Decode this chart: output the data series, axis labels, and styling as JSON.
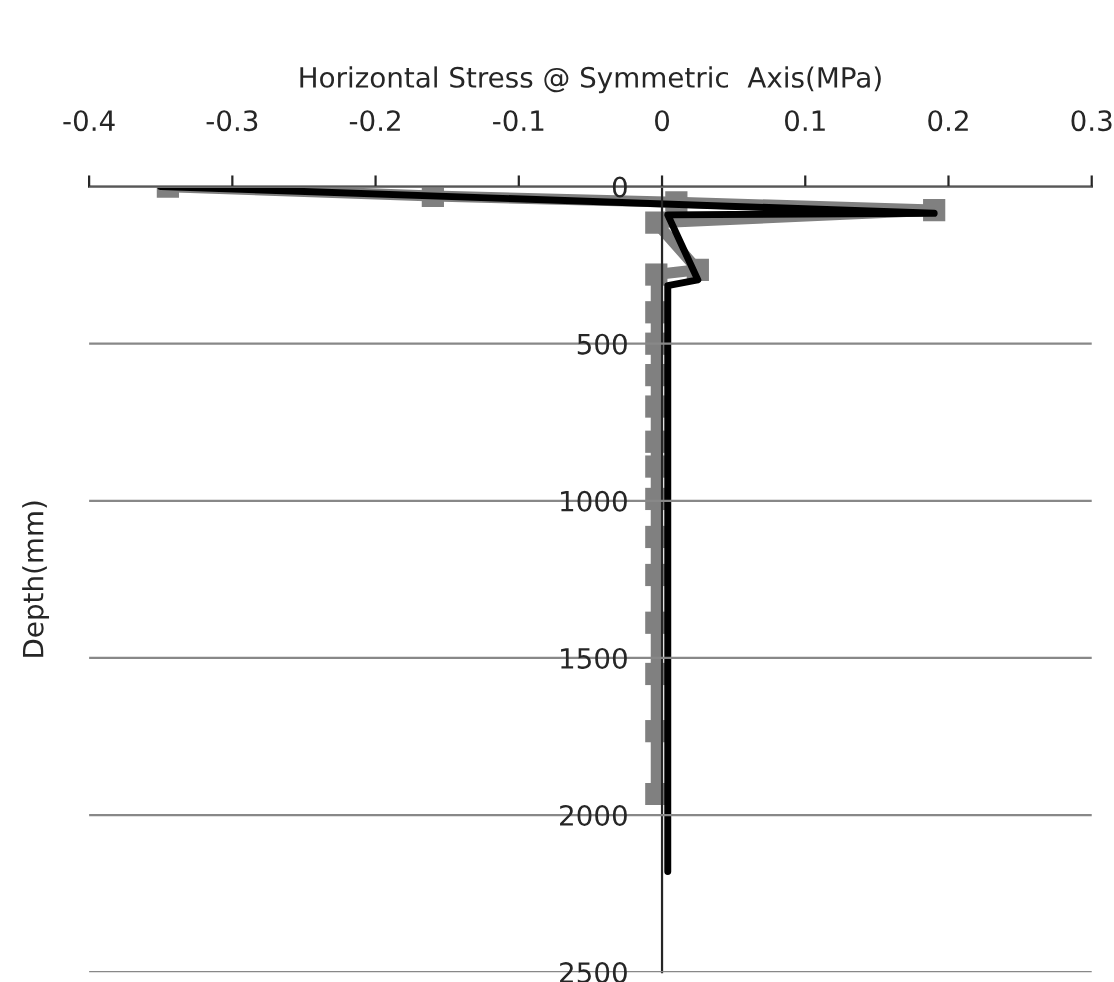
{
  "chart_data": {
    "type": "line",
    "xlabel": "Horizontal Stress @ Symmetric  Axis(MPa)",
    "ylabel": "Depth(mm)",
    "xlim": [
      -0.4,
      0.3
    ],
    "xticks": [
      -0.4,
      -0.3,
      -0.2,
      -0.1,
      0,
      0.1,
      0.2,
      0.3
    ],
    "ylim": [
      2500,
      0
    ],
    "yticks": [
      0,
      500,
      1000,
      1500,
      2000,
      2500
    ],
    "grid": "y",
    "legend": false,
    "series": [
      {
        "color": "#808080",
        "marker": "square",
        "x": [
          -0.345,
          -0.16,
          0.01,
          0.19,
          -0.004,
          0.025,
          -0.004,
          -0.004,
          -0.004,
          -0.004,
          -0.004,
          -0.004,
          -0.004,
          -0.004,
          -0.004,
          -0.004,
          -0.004,
          -0.004,
          -0.004,
          -0.004
        ],
        "values": [
          0,
          30,
          50,
          75,
          115,
          265,
          280,
          400,
          500,
          600,
          700,
          812,
          891,
          994,
          1115,
          1236,
          1388,
          1551,
          1733,
          1933
        ]
      },
      {
        "color": "#000000",
        "marker": "none",
        "x": [
          -0.35,
          0.19,
          0.004,
          0.025,
          0.004,
          0.004
        ],
        "values": [
          0,
          85,
          90,
          297,
          315,
          2180
        ]
      }
    ]
  }
}
